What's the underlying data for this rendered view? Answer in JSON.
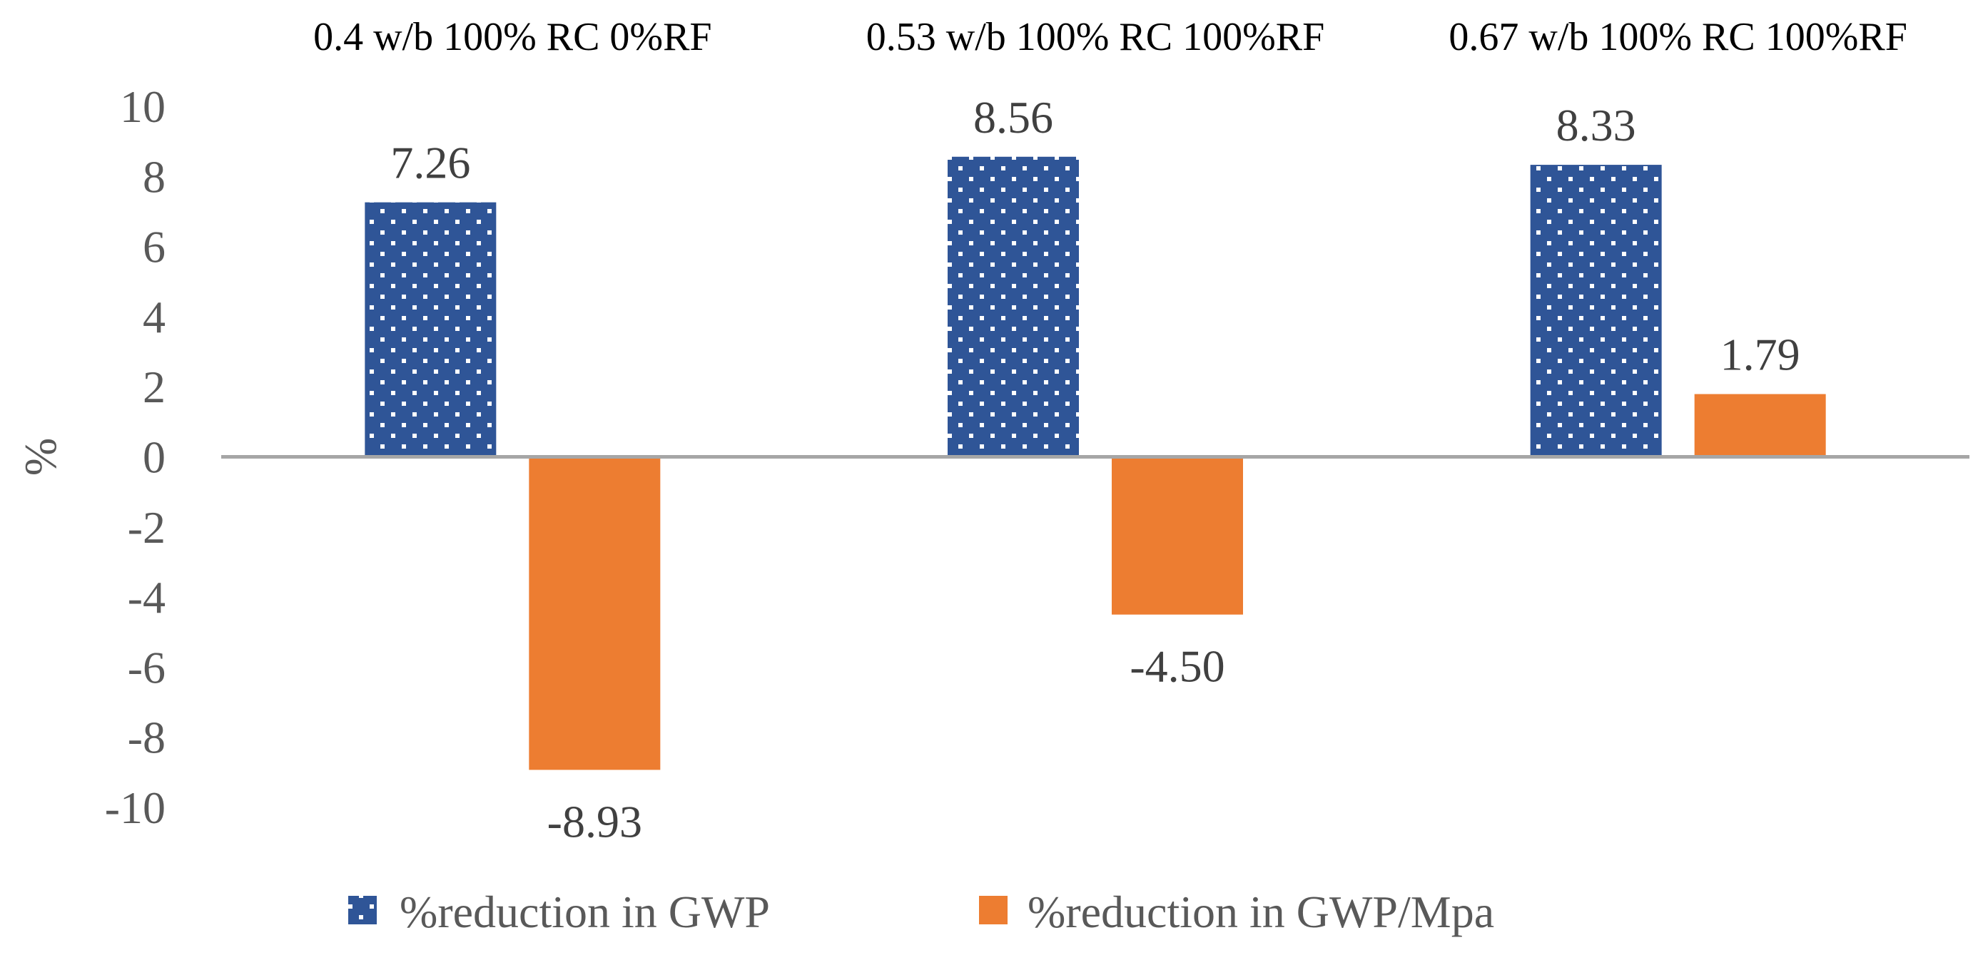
{
  "chart_data": {
    "type": "bar",
    "title": "",
    "xlabel": "",
    "ylabel": "%",
    "categories": [
      "0.4 w/b 100% RC 0%RF",
      "0.53 w/b 100% RC 100%RF",
      "0.67 w/b 100% RC 100%RF"
    ],
    "series": [
      {
        "name": "%reduction in GWP",
        "values": [
          7.26,
          8.56,
          8.33
        ],
        "labels": [
          "7.26",
          "8.56",
          "8.33"
        ],
        "color": "#2F5597",
        "pattern": "dotted"
      },
      {
        "name": "%reduction in GWP/Mpa",
        "values": [
          -8.93,
          -4.5,
          1.79
        ],
        "labels": [
          "-8.93",
          "-4.50",
          "1.79"
        ],
        "color": "#ED7D31",
        "pattern": "solid"
      }
    ],
    "ylim": [
      -10,
      10
    ],
    "yticks": [
      10,
      8,
      6,
      4,
      2,
      0,
      -2,
      -4,
      -6,
      -8,
      -10
    ],
    "grid": false,
    "category_labels_position": "top",
    "legend_position": "bottom"
  },
  "colors": {
    "axis_line": "#A6A6A6",
    "dots": "#FFFFFF"
  }
}
